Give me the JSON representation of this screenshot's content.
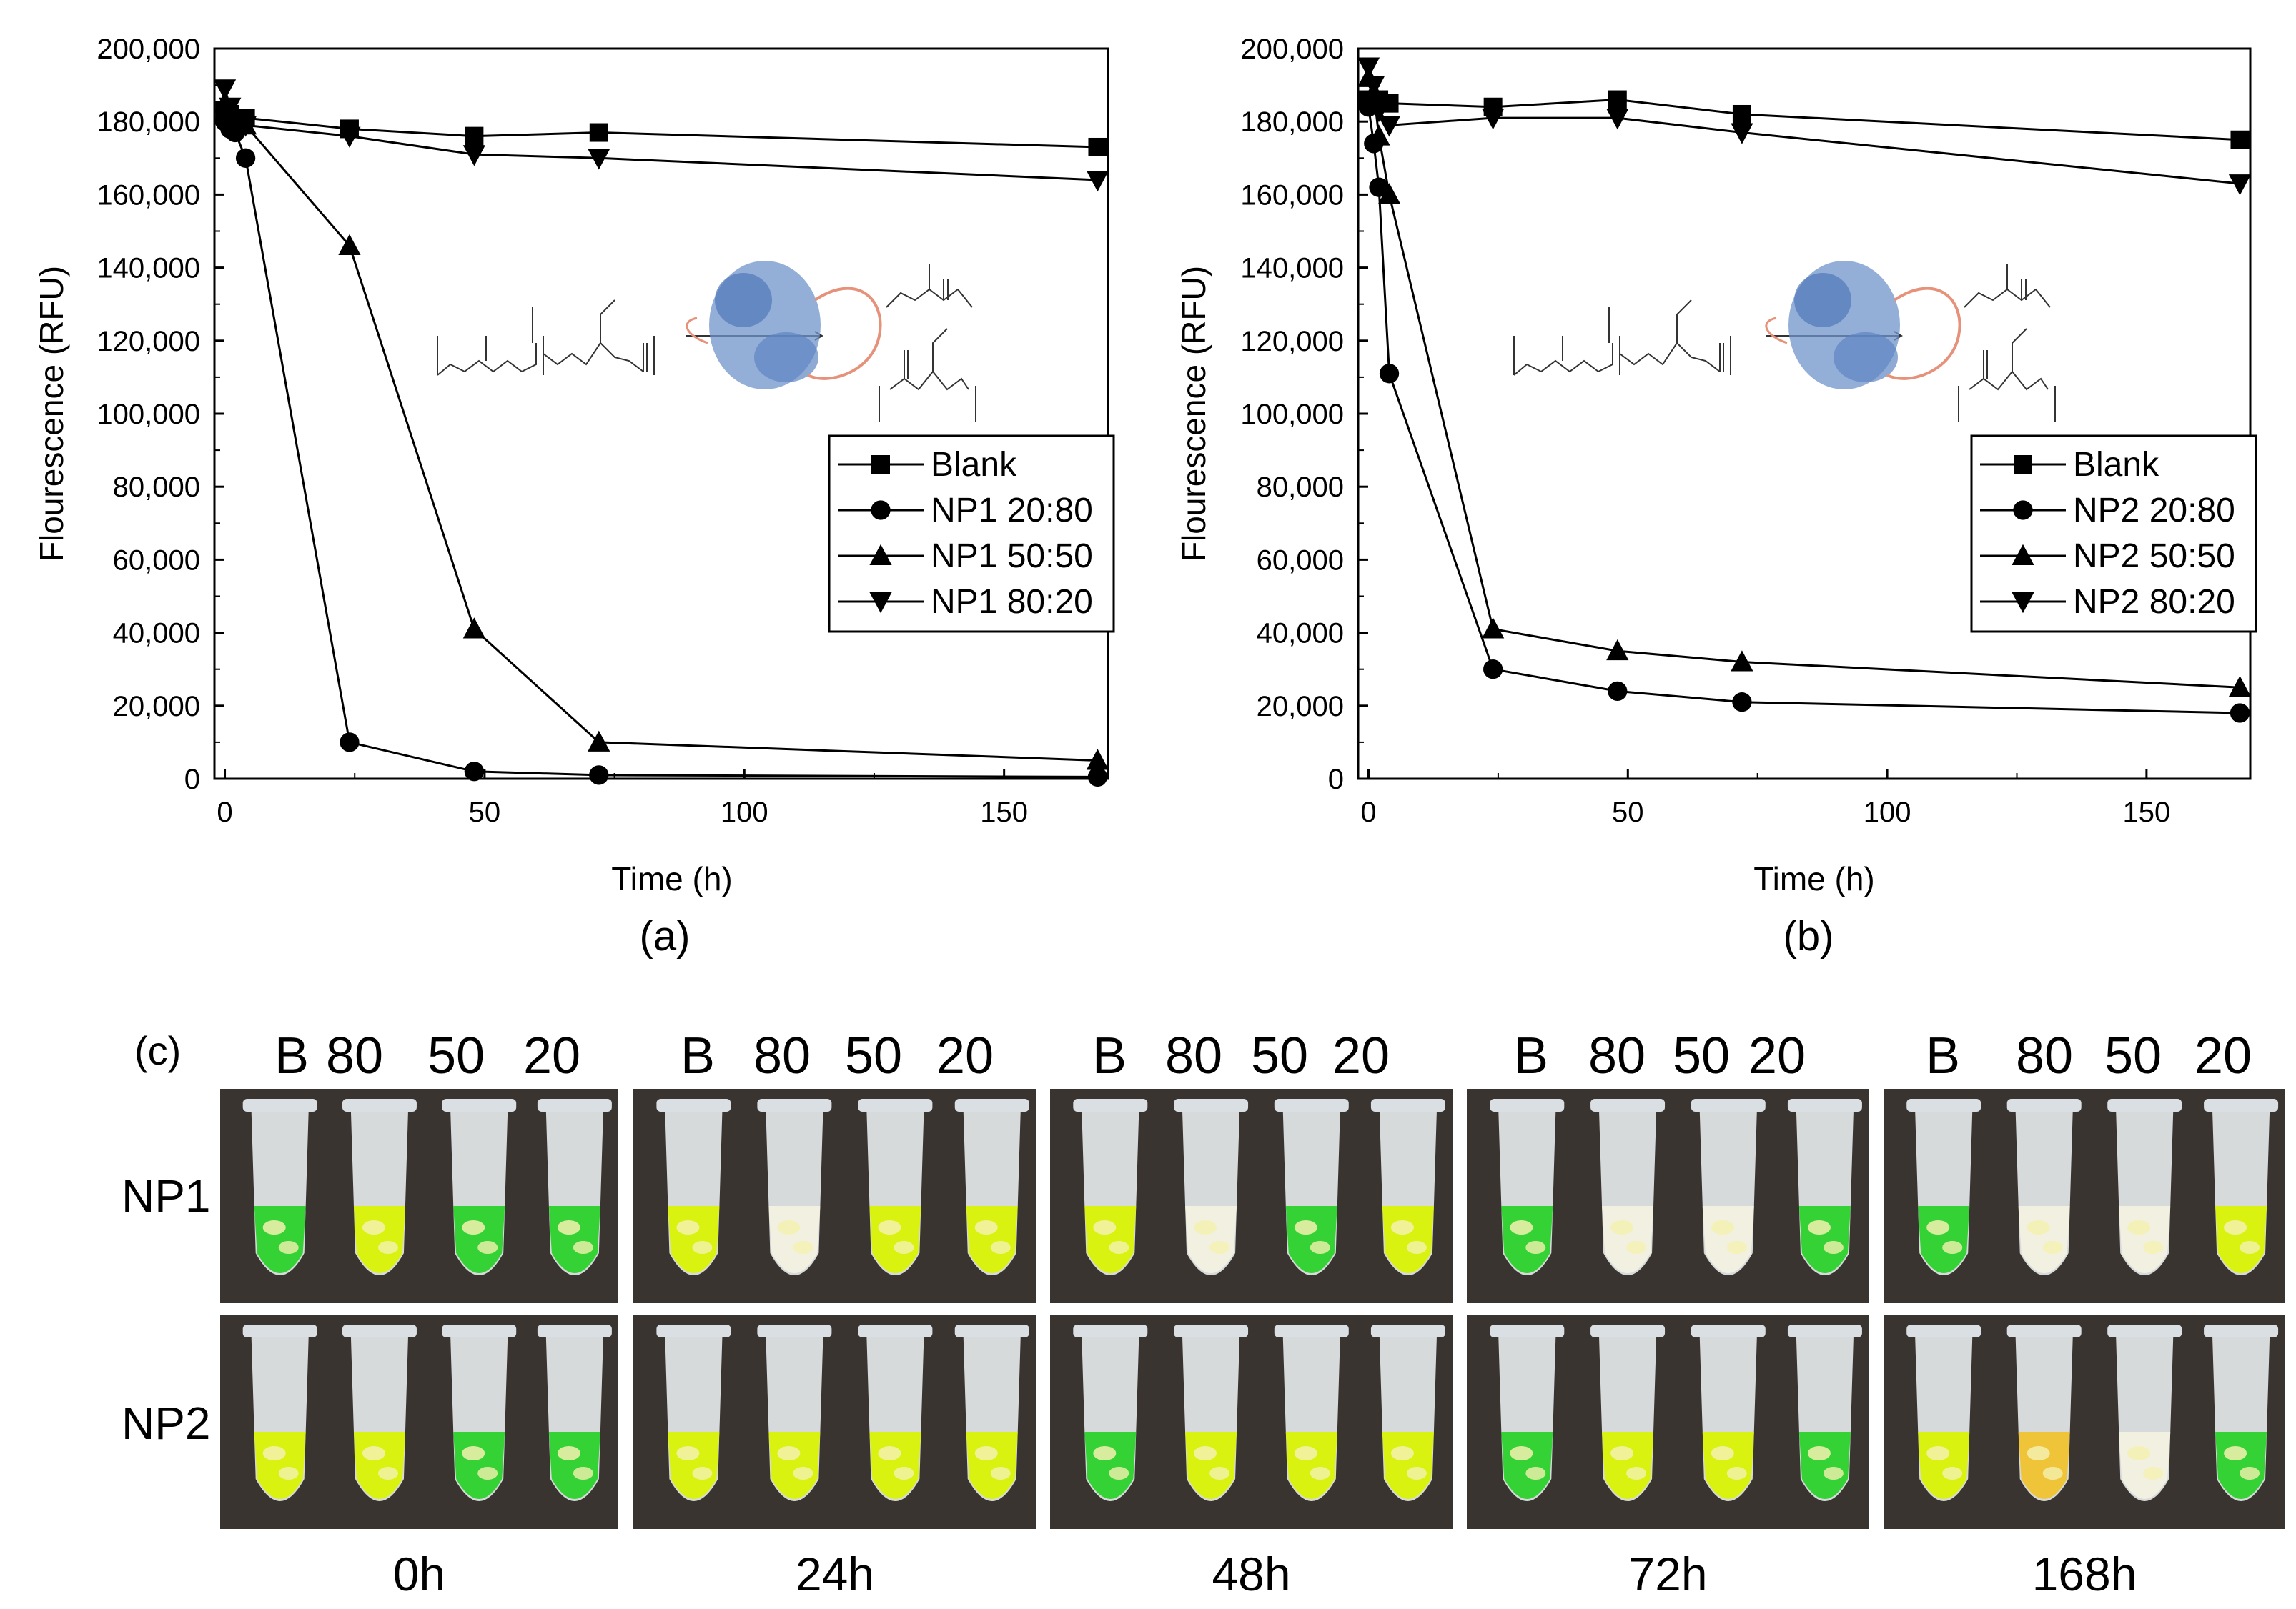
{
  "chart_data": [
    {
      "type": "line",
      "panel_label": "(a)",
      "xlabel": "Time (h)",
      "ylabel": "Flourescence (RFU)",
      "xlim": [
        -2,
        170
      ],
      "ylim": [
        0,
        200000
      ],
      "x_ticks": [
        0,
        50,
        100,
        150
      ],
      "y_ticks": [
        0,
        20000,
        40000,
        60000,
        80000,
        100000,
        120000,
        140000,
        160000,
        180000,
        200000
      ],
      "y_tick_labels": [
        "0",
        "20,000",
        "40,000",
        "60,000",
        "80,000",
        "100,000",
        "120,000",
        "140,000",
        "160,000",
        "180,000",
        "200,000"
      ],
      "legend_position": "lower-right",
      "series": [
        {
          "name": "Blank",
          "marker": "square",
          "x": [
            0,
            1,
            2,
            4,
            24,
            48,
            72,
            168
          ],
          "y": [
            183000,
            182000,
            181000,
            181000,
            178000,
            176000,
            177000,
            173000
          ]
        },
        {
          "name": "NP1 20:80",
          "marker": "circle",
          "x": [
            0,
            1,
            2,
            4,
            24,
            48,
            72,
            168
          ],
          "y": [
            180000,
            178000,
            177000,
            170000,
            10000,
            2000,
            1000,
            500
          ]
        },
        {
          "name": "NP1 50:50",
          "marker": "triangle-up",
          "x": [
            0,
            1,
            2,
            4,
            24,
            48,
            72,
            168
          ],
          "y": [
            185000,
            183000,
            180000,
            179000,
            146000,
            41000,
            10000,
            5000
          ]
        },
        {
          "name": "NP1 80:20",
          "marker": "triangle-down",
          "x": [
            0,
            1,
            2,
            4,
            24,
            48,
            72,
            168
          ],
          "y": [
            189000,
            184000,
            180000,
            179000,
            176000,
            171000,
            170000,
            164000
          ]
        }
      ]
    },
    {
      "type": "line",
      "panel_label": "(b)",
      "xlabel": "Time (h)",
      "ylabel": "Flourescence (RFU)",
      "xlim": [
        -2,
        170
      ],
      "ylim": [
        0,
        200000
      ],
      "x_ticks": [
        0,
        50,
        100,
        150
      ],
      "y_ticks": [
        0,
        20000,
        40000,
        60000,
        80000,
        100000,
        120000,
        140000,
        160000,
        180000,
        200000
      ],
      "y_tick_labels": [
        "0",
        "20,000",
        "40,000",
        "60,000",
        "80,000",
        "100,000",
        "120,000",
        "140,000",
        "160,000",
        "180,000",
        "200,000"
      ],
      "legend_position": "lower-right",
      "series": [
        {
          "name": "Blank",
          "marker": "square",
          "x": [
            0,
            1,
            2,
            4,
            24,
            48,
            72,
            168
          ],
          "y": [
            186000,
            185000,
            186000,
            185000,
            184000,
            186000,
            182000,
            175000
          ]
        },
        {
          "name": "NP2 20:80",
          "marker": "circle",
          "x": [
            0,
            1,
            2,
            4,
            24,
            48,
            72,
            168
          ],
          "y": [
            184000,
            174000,
            162000,
            111000,
            30000,
            24000,
            21000,
            18000
          ]
        },
        {
          "name": "NP2 50:50",
          "marker": "triangle-up",
          "x": [
            0,
            1,
            2,
            4,
            24,
            48,
            72,
            168
          ],
          "y": [
            192000,
            188000,
            176000,
            160000,
            41000,
            35000,
            32000,
            25000
          ]
        },
        {
          "name": "NP2 80:20",
          "marker": "triangle-down",
          "x": [
            0,
            1,
            2,
            4,
            24,
            48,
            72,
            168
          ],
          "y": [
            195000,
            190000,
            183000,
            179000,
            181000,
            181000,
            177000,
            163000
          ]
        }
      ]
    }
  ],
  "photos": {
    "panel_label": "(c)",
    "column_labels": [
      "B",
      "80",
      "50",
      "20"
    ],
    "row_labels": [
      "NP1",
      "NP2"
    ],
    "time_labels": [
      "0h",
      "24h",
      "48h",
      "72h",
      "168h"
    ],
    "colors": {
      "green_fluor": "#35d235",
      "yellow_fluor": "#d9f20f",
      "tube": "#e8ecee",
      "background": "#3a3431"
    }
  }
}
